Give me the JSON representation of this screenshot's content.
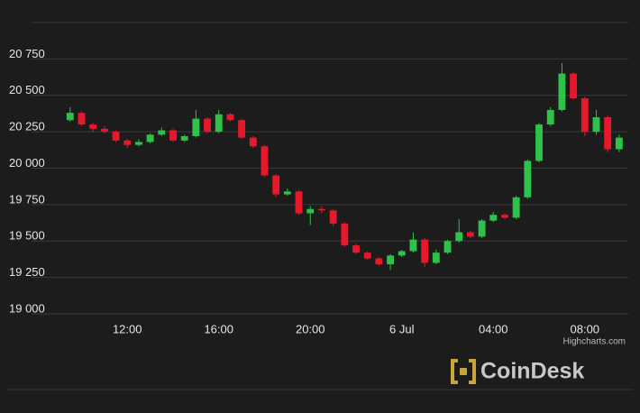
{
  "chart_data": {
    "type": "candlestick",
    "x": [
      9.5,
      10,
      10.5,
      11,
      11.5,
      12,
      12.5,
      13,
      13.5,
      14,
      14.5,
      15,
      15.5,
      16,
      16.5,
      17,
      17.5,
      18,
      18.5,
      19,
      19.5,
      20,
      20.5,
      21,
      21.5,
      22,
      22.5,
      23,
      23.5,
      24,
      24.5,
      25,
      25.5,
      26,
      26.5,
      27,
      27.5,
      28,
      28.5,
      29,
      29.5,
      30,
      30.5,
      31,
      31.5,
      32,
      32.5,
      33,
      33.5
    ],
    "open": [
      20330,
      20380,
      20300,
      20270,
      20250,
      20190,
      20160,
      20180,
      20230,
      20260,
      20190,
      20220,
      20340,
      20250,
      20370,
      20330,
      20210,
      20150,
      19950,
      19820,
      19840,
      19690,
      19720,
      19710,
      19620,
      19470,
      19420,
      19380,
      19340,
      19400,
      19430,
      19510,
      19350,
      19420,
      19500,
      19560,
      19530,
      19640,
      19680,
      19660,
      19800,
      20050,
      20300,
      20400,
      20650,
      20480,
      20250,
      20350,
      20130
    ],
    "high": [
      20420,
      20390,
      20310,
      20290,
      20260,
      20200,
      20200,
      20240,
      20280,
      20270,
      20230,
      20400,
      20350,
      20400,
      20380,
      20340,
      20220,
      20160,
      19960,
      19860,
      19850,
      19740,
      19740,
      19720,
      19630,
      19480,
      19430,
      19390,
      19410,
      19440,
      19560,
      19520,
      19440,
      19510,
      19650,
      19570,
      19650,
      19700,
      19690,
      19810,
      20060,
      20310,
      20420,
      20720,
      20660,
      20490,
      20400,
      20360,
      20230
    ],
    "low": [
      20320,
      20290,
      20250,
      20240,
      20180,
      20140,
      20150,
      20170,
      20220,
      20180,
      20180,
      20210,
      20240,
      20240,
      20320,
      20200,
      20140,
      19940,
      19800,
      19810,
      19680,
      19610,
      19690,
      19600,
      19460,
      19410,
      19370,
      19330,
      19300,
      19390,
      19420,
      19320,
      19340,
      19410,
      19490,
      19520,
      19520,
      19630,
      19650,
      19650,
      19790,
      20040,
      20290,
      20390,
      20470,
      20220,
      20230,
      20110,
      20110
    ],
    "close": [
      20380,
      20300,
      20270,
      20250,
      20190,
      20160,
      20180,
      20230,
      20260,
      20190,
      20220,
      20340,
      20250,
      20370,
      20330,
      20210,
      20150,
      19950,
      19820,
      19840,
      19690,
      19720,
      19710,
      19620,
      19470,
      19420,
      19380,
      19340,
      19400,
      19430,
      19510,
      19350,
      19420,
      19500,
      19560,
      19530,
      19640,
      19680,
      19660,
      19800,
      20050,
      20300,
      20400,
      20650,
      20480,
      20250,
      20350,
      20130,
      20210
    ],
    "up_color": "#2fc24a",
    "down_color": "#e5192b",
    "xlim": [
      6.75,
      33.9
    ],
    "xticks": [
      {
        "value": 12,
        "label": "12:00"
      },
      {
        "value": 16,
        "label": "16:00"
      },
      {
        "value": 20,
        "label": "20:00"
      },
      {
        "value": 24,
        "label": "6 Jul"
      },
      {
        "value": 28,
        "label": "04:00"
      },
      {
        "value": 32,
        "label": "08:00"
      }
    ],
    "ylim": [
      19000,
      21000
    ],
    "yticks": [
      {
        "value": 19000,
        "label": "19 000"
      },
      {
        "value": 19250,
        "label": "19 250"
      },
      {
        "value": 19500,
        "label": "19 500"
      },
      {
        "value": 19750,
        "label": "19 750"
      },
      {
        "value": 20000,
        "label": "20 000"
      },
      {
        "value": 20250,
        "label": "20 250"
      },
      {
        "value": 20500,
        "label": "20 500"
      },
      {
        "value": 20750,
        "label": "20 750"
      }
    ],
    "grid": true,
    "credits": "Highcharts.com",
    "watermark": "CoinDesk"
  }
}
